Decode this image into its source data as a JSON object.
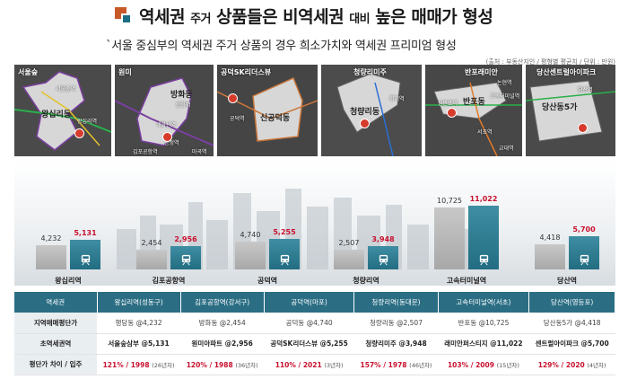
{
  "header": {
    "title_a": "역세권",
    "title_b": "주거",
    "title_c": "상품들은 비역세권",
    "title_d": "대비",
    "title_e": "높은 매매가 형성",
    "subtitle": "`서울 중심부의 역세권 주거 상품의 경우 희소가치와 역세권 프리미엄 형성",
    "source": "(출처 : 부동산지인 / 평형별 평균치 / 단위 : 만원)"
  },
  "maps": [
    {
      "label": "서울숲",
      "dong": "왕십리동",
      "pin": "5",
      "stations": [
        "서울숲역",
        "왕십리역"
      ]
    },
    {
      "label": "원미",
      "dong": "방화동",
      "pin": "2",
      "stations": [
        "방화역",
        "개화산역",
        "김포공항역",
        "송정역",
        "마곡역"
      ]
    },
    {
      "label": "공덕SK리더스뷰",
      "dong": "신공덕동",
      "pin": "5",
      "stations": [
        "공덕역"
      ]
    },
    {
      "label": "청량리미주",
      "dong": "청량리동",
      "pin": "9",
      "stations": [
        "회기역"
      ]
    },
    {
      "label": "반포래미안",
      "dong": "반포동",
      "pin": "9",
      "stations": [
        "신반포역",
        "논현역",
        "고속터미널역",
        "서초역",
        "교대역"
      ]
    },
    {
      "label": "당산센트럴아이파크",
      "dong": "당산동5가",
      "pin": "9",
      "stations": [
        "당산역"
      ]
    }
  ],
  "chart_data": {
    "type": "bar",
    "categories": [
      "왕십리역",
      "김포공항역",
      "공덕역",
      "청량리역",
      "고속터미널역",
      "당산역"
    ],
    "series": [
      {
        "values": [
          4232,
          2454,
          4740,
          2507,
          10725,
          4418
        ],
        "color": "#b4b4b4"
      },
      {
        "values": [
          5131,
          2956,
          5255,
          3948,
          11022,
          5700
        ],
        "color": "#2a7389"
      }
    ],
    "value_labels": {
      "a": [
        "4,232",
        "2,454",
        "4,740",
        "2,507",
        "10,725",
        "4,418"
      ],
      "b": [
        "5,131",
        "2,956",
        "5,255",
        "3,948",
        "11,022",
        "5,700"
      ]
    },
    "ylim": [
      0,
      11500
    ],
    "title": "",
    "xlabel": "",
    "ylabel": ""
  },
  "table": {
    "headers": [
      "역세권",
      "왕십리역(성동구)",
      "김포공항역(강서구)",
      "공덕역(마포)",
      "청량리역(동대문)",
      "고속터미널역(서초)",
      "당산역(영등포)"
    ],
    "rows": [
      {
        "label": "지역매매평단가",
        "style": "plain",
        "cells": [
          "행당동 @4,232",
          "방화동 @2,454",
          "공덕동 @4,740",
          "청량리동 @2,507",
          "반포동 @10,725",
          "당산동5가 @4,418"
        ]
      },
      {
        "label": "초역세권역",
        "style": "bold",
        "cells": [
          "서울숲삼부 @5,131",
          "원미아파트 @2,956",
          "공덕SK리더스뷰 @5,255",
          "청량리미주 @3,948",
          "래미안퍼스티지 @11,022",
          "센트럴아이파크 @5,700"
        ]
      },
      {
        "label": "평단가 차이 / 입주",
        "style": "red",
        "cells": [
          "121% / 1998",
          "120% / 1988",
          "110% / 2021",
          "157% / 1978",
          "103% / 2009",
          "129% / 2020"
        ],
        "years": [
          "(26년차)",
          "(36년차)",
          "(3년차)",
          "(46년차)",
          "(15년차)",
          "(4년차)"
        ]
      }
    ]
  },
  "colors": {
    "accent": "#2b6e84",
    "highlight": "#c8102e",
    "logo_orange": "#c85a2a"
  }
}
